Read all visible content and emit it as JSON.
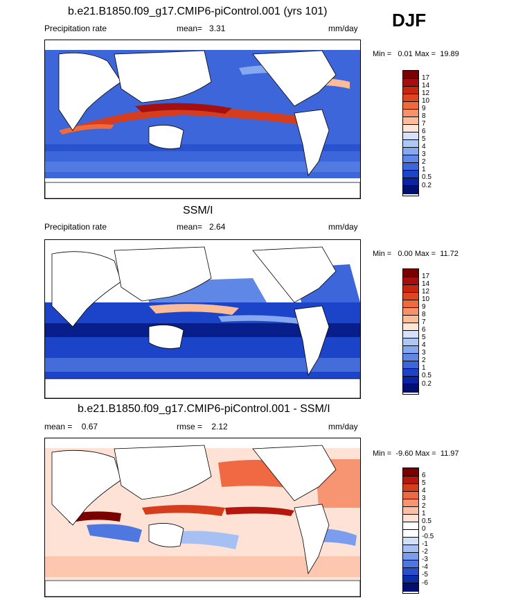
{
  "season": "DJF",
  "panels": [
    {
      "title": "b.e21.B1850.f09_g17.CMIP6-piControl.001 (yrs 101)",
      "left_label": "Precipitation rate",
      "mean_text": "mean=   3.31",
      "right_label": "mm/day",
      "minmax": "Min =   0.01 Max =  19.89",
      "colorbar_labels": [
        "17",
        "14",
        "12",
        "10",
        "9",
        "8",
        "7",
        "6",
        "5",
        "4",
        "3",
        "2",
        "1",
        "0.5",
        "0.2"
      ]
    },
    {
      "title": "SSM/I",
      "left_label": "Precipitation rate",
      "mean_text": "mean=   2.64",
      "right_label": "mm/day",
      "minmax": "Min =   0.00 Max =  11.72",
      "colorbar_labels": [
        "17",
        "14",
        "12",
        "10",
        "9",
        "8",
        "7",
        "6",
        "5",
        "4",
        "3",
        "2",
        "1",
        "0.5",
        "0.2"
      ]
    },
    {
      "title": "b.e21.B1850.f09_g17.CMIP6-piControl.001 - SSM/I",
      "left_label": "mean =    0.67",
      "mean_text": "rmse =    2.12",
      "right_label": "mm/day",
      "minmax": "Min =  -9.60 Max =  11.97",
      "colorbar_labels": [
        "6",
        "5",
        "4",
        "3",
        "2",
        "1",
        "0.5",
        "0",
        "-0.5",
        "-1",
        "-2",
        "-3",
        "-4",
        "-5",
        "-6"
      ]
    }
  ],
  "colors": {
    "precip_scale": [
      "#7a0000",
      "#a50f0f",
      "#c8260f",
      "#e0451f",
      "#f06a3c",
      "#f7916a",
      "#fbbc99",
      "#fde6d6",
      "#d6e2fa",
      "#aec8f6",
      "#86a8ef",
      "#5f88e6",
      "#3d66da",
      "#1c44c8",
      "#0a24a6",
      "#001070"
    ],
    "diff_scale": [
      "#7a0000",
      "#b5170f",
      "#d63d1c",
      "#ef6a43",
      "#f79572",
      "#fbbfa5",
      "#fde2d5",
      "#ffffff",
      "#ffffff",
      "#d2dff9",
      "#a6c0f3",
      "#7a9ded",
      "#4f77e0",
      "#2a4fcc",
      "#0c2ca8",
      "#001070"
    ]
  }
}
